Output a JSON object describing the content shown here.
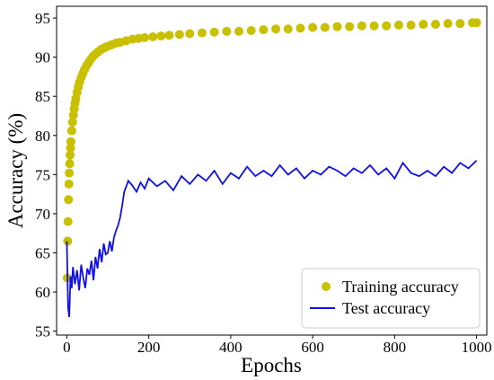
{
  "chart_data": {
    "type": "line",
    "title": "",
    "xlabel": "Epochs",
    "ylabel": "Accuracy (%)",
    "xlim": [
      -25,
      1025
    ],
    "ylim": [
      54.5,
      96.5
    ],
    "xticks": [
      "0",
      "200",
      "400",
      "600",
      "800",
      "1000"
    ],
    "yticks": [
      "55",
      "60",
      "65",
      "70",
      "75",
      "80",
      "85",
      "90",
      "95"
    ],
    "grid": false,
    "legend_position": "lower-right",
    "series": [
      {
        "name": "Training accuracy",
        "style": "scatter",
        "color": "#c8c000",
        "x": [
          1,
          2,
          3,
          4,
          5,
          6,
          7,
          8,
          9,
          10,
          12,
          14,
          16,
          18,
          20,
          22,
          25,
          28,
          31,
          35,
          39,
          43,
          48,
          53,
          58,
          64,
          70,
          77,
          84,
          92,
          100,
          110,
          120,
          130,
          145,
          160,
          175,
          190,
          210,
          230,
          250,
          275,
          300,
          330,
          360,
          390,
          420,
          450,
          480,
          510,
          540,
          570,
          600,
          630,
          660,
          690,
          720,
          750,
          780,
          810,
          840,
          870,
          900,
          930,
          960,
          990,
          1000
        ],
        "y": [
          61.8,
          66.5,
          69.0,
          71.8,
          73.8,
          75.2,
          76.4,
          77.5,
          78.4,
          79.2,
          80.6,
          81.7,
          82.6,
          83.4,
          84.1,
          84.7,
          85.5,
          86.2,
          86.8,
          87.4,
          87.9,
          88.4,
          88.9,
          89.3,
          89.7,
          90.1,
          90.4,
          90.7,
          91.0,
          91.2,
          91.4,
          91.6,
          91.8,
          91.9,
          92.1,
          92.3,
          92.4,
          92.5,
          92.6,
          92.7,
          92.8,
          92.9,
          93.0,
          93.1,
          93.2,
          93.3,
          93.3,
          93.4,
          93.5,
          93.6,
          93.6,
          93.7,
          93.8,
          93.8,
          93.9,
          93.9,
          94.0,
          94.0,
          94.0,
          94.1,
          94.1,
          94.2,
          94.2,
          94.3,
          94.3,
          94.4,
          94.4
        ]
      },
      {
        "name": "Test accuracy",
        "style": "line",
        "color": "#1010ee",
        "x": [
          0,
          3,
          6,
          9,
          12,
          15,
          20,
          25,
          30,
          35,
          40,
          45,
          50,
          55,
          60,
          65,
          70,
          75,
          80,
          85,
          90,
          95,
          100,
          105,
          110,
          115,
          120,
          125,
          130,
          135,
          140,
          145,
          150,
          160,
          170,
          180,
          190,
          200,
          220,
          240,
          260,
          280,
          300,
          320,
          340,
          360,
          380,
          400,
          420,
          440,
          460,
          480,
          500,
          520,
          540,
          560,
          580,
          600,
          620,
          640,
          660,
          680,
          700,
          720,
          740,
          760,
          780,
          800,
          820,
          840,
          860,
          880,
          900,
          920,
          940,
          960,
          980,
          1000
        ],
        "y": [
          66.5,
          58.0,
          56.8,
          62.0,
          60.5,
          63.2,
          61.0,
          62.8,
          60.2,
          63.5,
          61.8,
          60.5,
          63.0,
          62.2,
          64.0,
          61.5,
          64.5,
          63.0,
          65.5,
          63.8,
          66.2,
          64.8,
          65.0,
          66.5,
          65.2,
          67.0,
          67.8,
          68.5,
          69.5,
          71.0,
          72.8,
          73.5,
          74.2,
          73.6,
          72.8,
          74.0,
          73.2,
          74.5,
          73.5,
          74.2,
          73.0,
          74.8,
          73.8,
          75.0,
          74.2,
          75.5,
          73.8,
          75.2,
          74.5,
          76.0,
          74.8,
          75.5,
          74.8,
          76.2,
          75.0,
          75.8,
          74.5,
          75.5,
          75.0,
          76.0,
          75.5,
          74.8,
          75.8,
          75.2,
          76.2,
          75.0,
          75.8,
          74.5,
          76.5,
          75.2,
          74.8,
          75.5,
          74.8,
          76.0,
          75.2,
          76.5,
          75.8,
          76.8
        ]
      }
    ]
  }
}
